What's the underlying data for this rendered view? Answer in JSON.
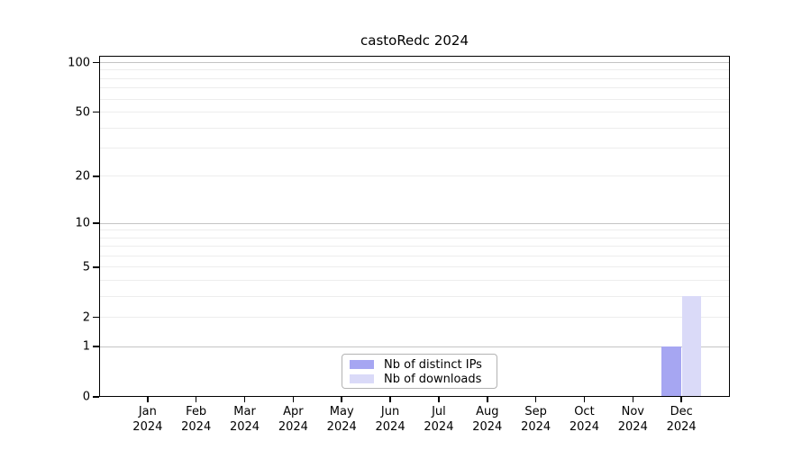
{
  "chart_data": {
    "type": "bar",
    "title": "castoRedc 2024",
    "categories": [
      "Jan\n2024",
      "Feb\n2024",
      "Mar\n2024",
      "Apr\n2024",
      "May\n2024",
      "Jun\n2024",
      "Jul\n2024",
      "Aug\n2024",
      "Sep\n2024",
      "Oct\n2024",
      "Nov\n2024",
      "Dec\n2024"
    ],
    "series": [
      {
        "name": "Nb of distinct IPs",
        "color": "#a6a6f2",
        "values": [
          0,
          0,
          0,
          0,
          0,
          0,
          0,
          0,
          0,
          0,
          0,
          1
        ]
      },
      {
        "name": "Nb of downloads",
        "color": "#dadaf8",
        "values": [
          0,
          0,
          0,
          0,
          0,
          0,
          0,
          0,
          0,
          0,
          0,
          3
        ]
      }
    ],
    "xlabel": "",
    "ylabel": "",
    "yscale": "log1p",
    "ylim": [
      0,
      110
    ],
    "yticks": [
      0,
      1,
      2,
      5,
      10,
      20,
      50,
      100
    ],
    "major_gridlines": [
      1,
      10,
      100
    ],
    "minor_gridlines": [
      2,
      3,
      4,
      5,
      6,
      7,
      8,
      9,
      20,
      30,
      40,
      50,
      60,
      70,
      80,
      90
    ],
    "grid": true,
    "legend_position": "lower center",
    "colors": {
      "major_grid": "#c4c4c4",
      "minor_grid": "#ededed",
      "axis": "#000000",
      "background": "#ffffff"
    }
  }
}
